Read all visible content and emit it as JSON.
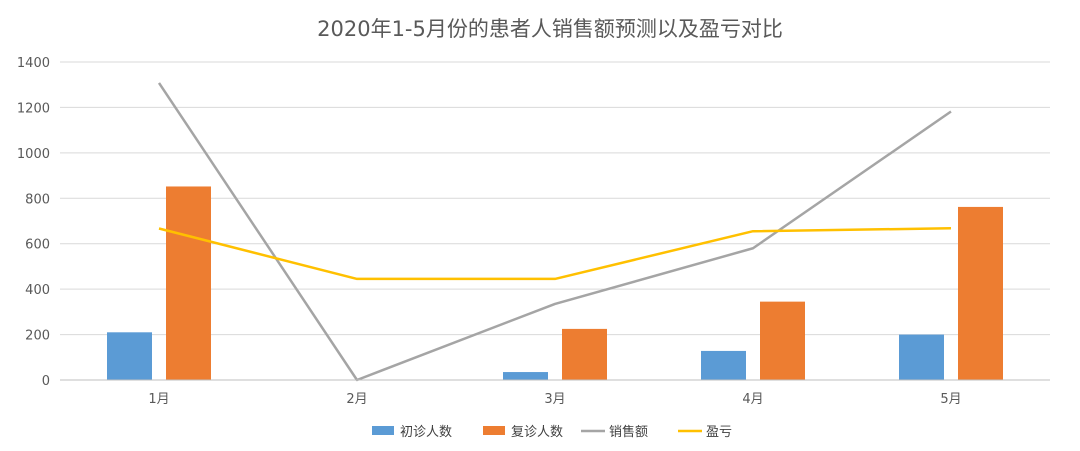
{
  "chart_data": {
    "type": "bar",
    "title": "2020年1-5月份的患者人销售额预测以及盈亏对比",
    "categories": [
      "1月",
      "2月",
      "3月",
      "4月",
      "5月"
    ],
    "ylim": [
      0,
      1400
    ],
    "yticks": [
      0,
      200,
      400,
      600,
      800,
      1000,
      1200,
      1400
    ],
    "grid": true,
    "legend_position": "bottom",
    "series": [
      {
        "name": "初诊人数",
        "type": "bar",
        "color": "#5b9bd5",
        "values": [
          210,
          0,
          35,
          128,
          200
        ]
      },
      {
        "name": "复诊人数",
        "type": "bar",
        "color": "#ed7d31",
        "values": [
          852,
          0,
          225,
          345,
          762
        ]
      },
      {
        "name": "销售额",
        "type": "line",
        "color": "#a5a5a5",
        "values": [
          1308,
          0,
          335,
          580,
          1182
        ]
      },
      {
        "name": "盈亏",
        "type": "line",
        "color": "#ffc000",
        "values": [
          667,
          445,
          445,
          655,
          668
        ]
      }
    ]
  }
}
